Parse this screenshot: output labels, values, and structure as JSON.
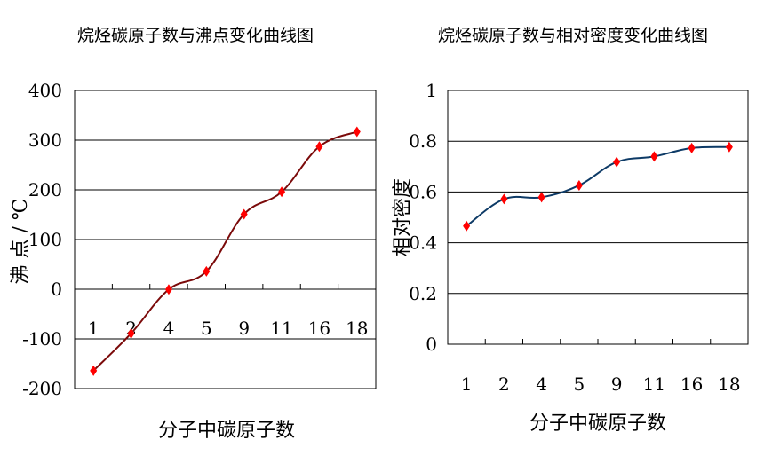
{
  "chart_data": [
    {
      "type": "line",
      "title": "烷烃碳原子数与沸点变化曲线图",
      "xlabel": "分子中碳原子数",
      "ylabel": "沸 点 / ℃",
      "categories": [
        "1",
        "2",
        "4",
        "5",
        "9",
        "11",
        "16",
        "18"
      ],
      "values": [
        -164,
        -89,
        -0.5,
        36,
        151,
        196,
        287,
        317
      ],
      "ylim": [
        -200,
        400
      ],
      "yticks": [
        "400",
        "300",
        "200",
        "100",
        "0",
        "-100",
        "-200"
      ],
      "ytick_values": [
        400,
        300,
        200,
        100,
        0,
        -100,
        -200
      ],
      "grid": true,
      "line_color": "#7b0a0a",
      "marker_color": "#ff0000"
    },
    {
      "type": "line",
      "title": "烷烃碳原子数与相对密度变化曲线图",
      "xlabel": "分子中碳原子数",
      "ylabel": "相对密度",
      "categories": [
        "1",
        "2",
        "4",
        "5",
        "9",
        "11",
        "16",
        "18"
      ],
      "values": [
        0.466,
        0.572,
        0.579,
        0.626,
        0.718,
        0.74,
        0.773,
        0.777
      ],
      "ylim": [
        0,
        1
      ],
      "yticks": [
        "1",
        "0.8",
        "0.6",
        "0.4",
        "0.2",
        "0"
      ],
      "ytick_values": [
        1,
        0.8,
        0.6,
        0.4,
        0.2,
        0
      ],
      "grid": true,
      "line_color": "#0d3a66",
      "marker_color": "#ff0000"
    }
  ]
}
